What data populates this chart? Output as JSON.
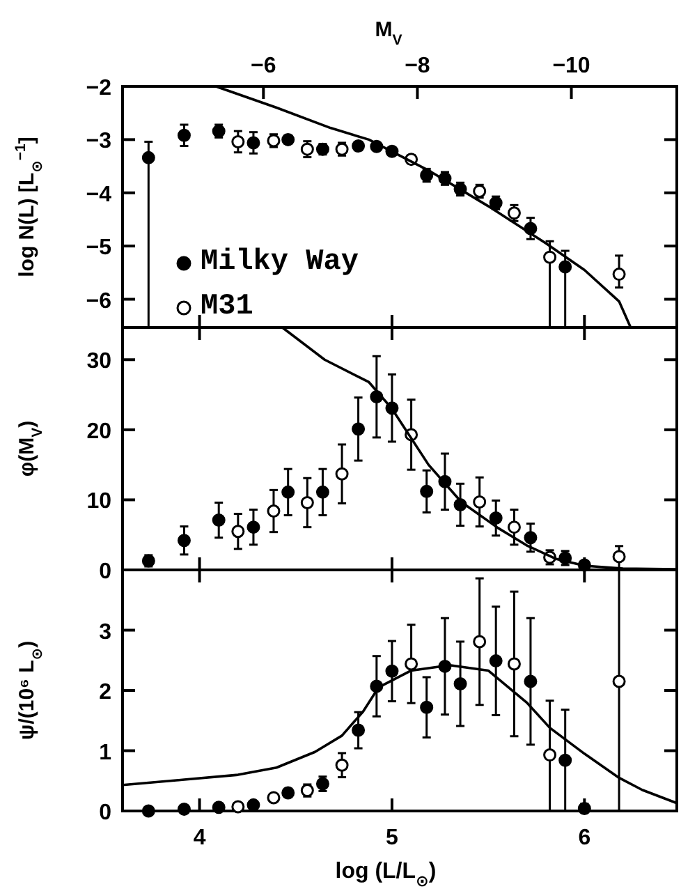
{
  "chart_data": [
    {
      "type": "scatter",
      "ylabel": "log N(L) [L$_{⊙}$$^{−1}$]",
      "x2label": "M$_{V}$",
      "xlim": [
        3.6,
        6.48
      ],
      "xticks": [
        4,
        5,
        6
      ],
      "x2lim": [
        -4.17,
        -11.37
      ],
      "x2ticks": [
        {
          "value": -6,
          "label": "−6"
        },
        {
          "value": -8,
          "label": "−8"
        },
        {
          "value": -10,
          "label": "−10"
        }
      ],
      "ylim": [
        -6.53,
        -2
      ],
      "yticks": [
        {
          "value": -2,
          "label": "−2"
        },
        {
          "value": -3,
          "label": "−3"
        },
        {
          "value": -4,
          "label": "−4"
        },
        {
          "value": -5,
          "label": "−5"
        },
        {
          "value": -6,
          "label": "−6"
        }
      ],
      "tick_labels": "y",
      "marker": "circle",
      "legend": "bottom left",
      "series": [
        {
          "type": "scatter",
          "name": "Milky Way",
          "color": "#000000",
          "x": [
            3.735,
            3.92,
            4.1,
            4.28,
            4.46,
            4.64,
            4.825,
            4.92,
            5.0,
            5.18,
            5.275,
            5.355,
            5.54,
            5.72,
            5.9
          ],
          "values": [
            -3.34,
            -2.92,
            -2.84,
            -3.06,
            -3.0,
            -3.18,
            -3.12,
            -3.13,
            -3.22,
            -3.67,
            -3.73,
            -3.93,
            -4.19,
            -4.67,
            -5.39
          ],
          "errors": [
            [
              -6.53,
              -3.04
            ],
            0.2,
            0.12,
            0.2,
            0.08,
            0.1,
            0.08,
            0.07,
            0.07,
            0.12,
            0.12,
            0.12,
            0.12,
            0.2,
            [
              -6.53,
              -5.09
            ]
          ]
        },
        {
          "type": "scatter",
          "name": "M31",
          "color": "#ffffff",
          "x": [
            4.2,
            4.385,
            4.56,
            4.74,
            5.1,
            5.455,
            5.635,
            5.82,
            6.18
          ],
          "values": [
            -3.04,
            -3.02,
            -3.18,
            -3.18,
            -3.37,
            -3.97,
            -4.38,
            -5.21,
            -5.53
          ],
          "errors": [
            0.2,
            0.12,
            0.15,
            0.12,
            0.08,
            0.12,
            0.15,
            [
              -6.53,
              -4.91
            ],
            [
              -5.78,
              -5.18
            ]
          ]
        },
        {
          "type": "line",
          "color": "#000000",
          "marker": "none",
          "x": [
            4.085,
            4.4,
            4.68,
            4.88,
            5.2,
            5.5,
            5.8,
            6.0,
            6.18,
            6.24
          ],
          "values": [
            -2,
            -2.4,
            -2.78,
            -3.0,
            -3.6,
            -4.25,
            -4.95,
            -5.45,
            -6.04,
            -6.53
          ]
        }
      ]
    },
    {
      "type": "scatter",
      "ylabel": "φ(M$_{V}$)",
      "xlim": [
        3.6,
        6.48
      ],
      "xticks": [
        4,
        5,
        6
      ],
      "ylim": [
        0,
        34.6
      ],
      "yticks": [
        0,
        10,
        20,
        30
      ],
      "tick_labels": "y",
      "marker": "circle",
      "series": [
        {
          "type": "scatter",
          "color": "#000000",
          "x": [
            3.735,
            3.92,
            4.1,
            4.28,
            4.46,
            4.64,
            4.825,
            4.92,
            5.0,
            5.18,
            5.275,
            5.355,
            5.54,
            5.72,
            5.9,
            6.0
          ],
          "values": [
            1.3,
            4.2,
            7.1,
            6.1,
            11.1,
            11.1,
            20.1,
            24.7,
            23.1,
            11.2,
            12.6,
            9.3,
            7.4,
            4.6,
            1.7,
            0.7
          ],
          "errors": [
            0.8,
            2,
            2.5,
            2.5,
            3.3,
            3.3,
            4.5,
            5.8,
            4.8,
            3,
            4,
            3,
            2.5,
            2,
            1,
            0.4
          ]
        },
        {
          "type": "scatter",
          "color": "#ffffff",
          "x": [
            4.2,
            4.385,
            4.56,
            4.74,
            5.1,
            5.455,
            5.635,
            5.82,
            6.18
          ],
          "values": [
            5.5,
            8.4,
            9.6,
            13.7,
            19.3,
            9.7,
            6.1,
            1.8,
            1.9
          ],
          "errors": [
            2.5,
            3,
            3.5,
            4.2,
            5,
            3.5,
            2.5,
            1,
            [
              0,
              3.4
            ]
          ]
        },
        {
          "type": "line",
          "color": "#000000",
          "marker": "none",
          "x": [
            4.43,
            4.65,
            4.88,
            5.0,
            5.19,
            5.36,
            5.55,
            5.7,
            5.85,
            6.0,
            6.2,
            6.48
          ],
          "values": [
            34.6,
            30,
            26.8,
            23,
            15,
            9.7,
            6,
            3.5,
            1.6,
            0.6,
            0.2,
            0.1
          ]
        }
      ]
    },
    {
      "type": "scatter",
      "ylabel": "ψ/(10⁶ L$_{⊙}$)",
      "xlabel": "log (L/L$_{⊙}$)",
      "xlim": [
        3.6,
        6.48
      ],
      "xticks": [
        4,
        5,
        6
      ],
      "ylim": [
        0,
        4.0
      ],
      "yticks": [
        0,
        1,
        2,
        3
      ],
      "marker": "circle",
      "series": [
        {
          "type": "scatter",
          "color": "#000000",
          "x": [
            3.735,
            3.92,
            4.1,
            4.28,
            4.46,
            4.64,
            4.825,
            4.92,
            5.0,
            5.18,
            5.275,
            5.355,
            5.54,
            5.72,
            5.9,
            6.0
          ],
          "values": [
            0.0,
            0.03,
            0.06,
            0.1,
            0.3,
            0.45,
            1.34,
            2.07,
            2.32,
            1.72,
            2.4,
            2.11,
            2.49,
            2.15,
            0.84,
            0.04
          ],
          "errors": [
            null,
            null,
            null,
            null,
            0.07,
            0.12,
            0.3,
            0.5,
            0.5,
            0.5,
            0.8,
            0.7,
            0.9,
            1.05,
            0.84,
            [
              0,
              0.12
            ]
          ]
        },
        {
          "type": "scatter",
          "color": "#ffffff",
          "x": [
            4.2,
            4.385,
            4.56,
            4.74,
            5.1,
            5.455,
            5.635,
            5.82,
            6.18
          ],
          "values": [
            0.07,
            0.22,
            0.34,
            0.76,
            2.44,
            2.81,
            2.44,
            0.93,
            2.15
          ],
          "errors": [
            null,
            null,
            0.1,
            0.2,
            0.65,
            1.05,
            1.2,
            [
              0,
              1.83
            ],
            [
              0,
              4.0
            ]
          ]
        },
        {
          "type": "line",
          "color": "#000000",
          "marker": "none",
          "x": [
            3.6,
            3.92,
            4.2,
            4.4,
            4.6,
            4.74,
            4.85,
            4.93,
            5.1,
            5.3,
            5.5,
            5.7,
            5.82,
            6.0,
            6.18,
            6.3,
            6.48
          ],
          "values": [
            0.43,
            0.52,
            0.6,
            0.72,
            0.98,
            1.25,
            1.65,
            2.05,
            2.33,
            2.42,
            2.33,
            1.8,
            1.38,
            0.95,
            0.55,
            0.35,
            0.13
          ]
        }
      ]
    }
  ]
}
